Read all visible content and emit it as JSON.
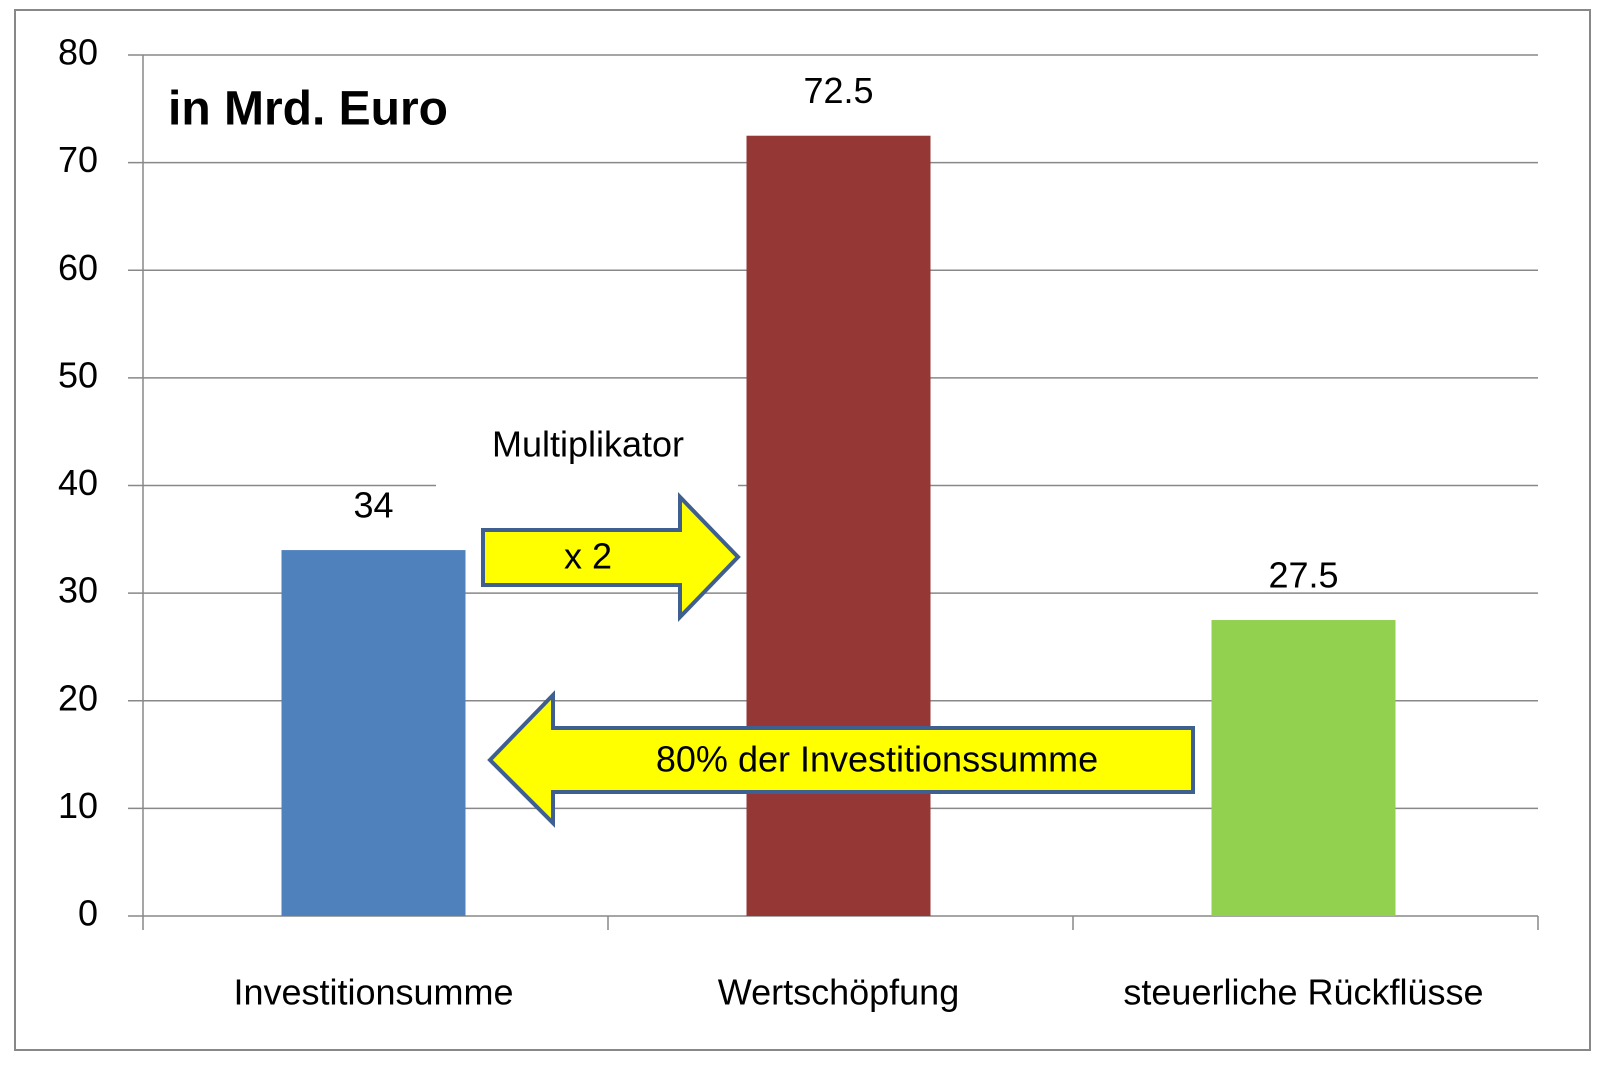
{
  "chart_data": {
    "type": "bar",
    "title": "in Mrd. Euro",
    "categories": [
      "Investitionsumme",
      "Wertschöpfung",
      "steuerliche Rückflüsse"
    ],
    "values": [
      34,
      72.5,
      27.5
    ],
    "colors": [
      "#4f81bd",
      "#953735",
      "#92d050"
    ],
    "ylim": [
      0,
      80
    ],
    "yticks": [
      0,
      10,
      20,
      30,
      40,
      50,
      60,
      70,
      80
    ],
    "grid": true,
    "annotations": [
      "Multiplikator",
      "x 2",
      "80% der Investitionssumme"
    ]
  }
}
